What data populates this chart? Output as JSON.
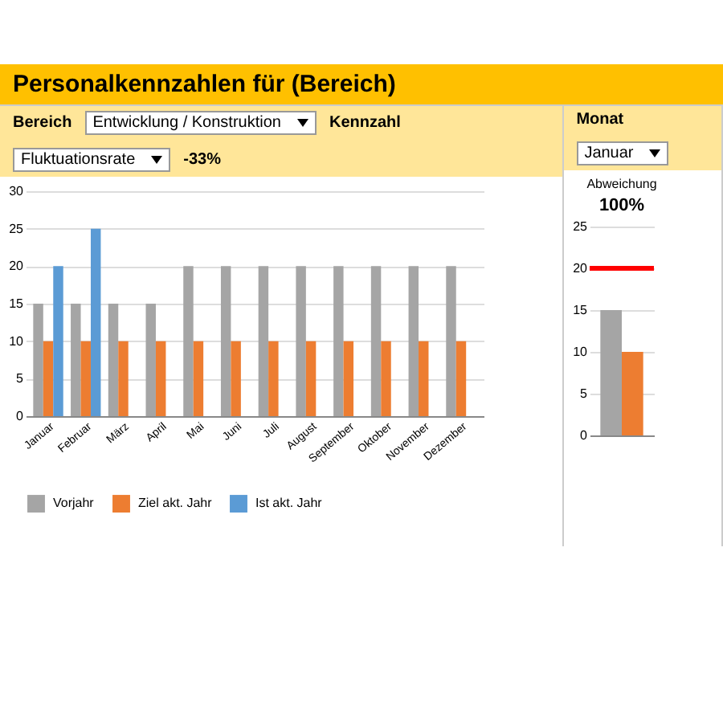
{
  "chart_data": [
    {
      "type": "bar",
      "title": "Personalkennzahlen für (Bereich)",
      "annotations": [
        "Bereich",
        "Entwicklung / Konstruktion",
        "Kennzahl",
        "Fluktuationsrate",
        "-33%"
      ],
      "categories": [
        "Januar",
        "Februar",
        "März",
        "April",
        "Mai",
        "Juni",
        "Juli",
        "August",
        "September",
        "Oktober",
        "November",
        "Dezember"
      ],
      "series": [
        {
          "name": "Vorjahr",
          "color": "#a5a5a5",
          "values": [
            15,
            15,
            15,
            15,
            20,
            20,
            20,
            20,
            20,
            20,
            20,
            20
          ]
        },
        {
          "name": "Ziel akt. Jahr",
          "color": "#ed7d31",
          "values": [
            10,
            10,
            10,
            10,
            10,
            10,
            10,
            10,
            10,
            10,
            10,
            10
          ]
        },
        {
          "name": "Ist akt. Jahr",
          "color": "#5b9bd5",
          "values": [
            20,
            25,
            null,
            null,
            null,
            null,
            null,
            null,
            null,
            null,
            null,
            null
          ]
        }
      ],
      "ylim": [
        0,
        30
      ],
      "yticks": [
        0,
        5,
        10,
        15,
        20,
        25,
        30
      ],
      "grid": "y",
      "legend": "bottom"
    },
    {
      "type": "bar",
      "title": "Abweichung",
      "subtitle": "100%",
      "annotations": [
        "Monat",
        "Januar"
      ],
      "categories": [
        null
      ],
      "series": [
        {
          "color": "#a5a5a5",
          "values": [
            15
          ]
        },
        {
          "color": "#ed7d31",
          "values": [
            10
          ]
        }
      ],
      "ref_lines": [
        {
          "axis": "y",
          "value": 20,
          "color": "#ff0000"
        }
      ],
      "ylim": [
        0,
        25
      ],
      "yticks": [
        0,
        5,
        10,
        15,
        20,
        25
      ],
      "grid": "y",
      "legend": false
    }
  ]
}
